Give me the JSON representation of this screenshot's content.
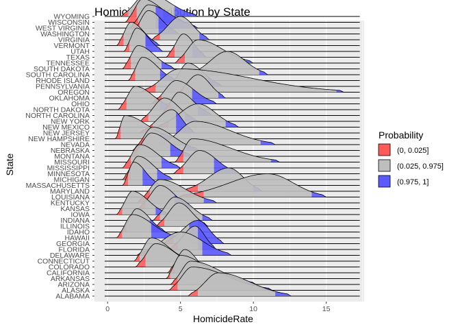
{
  "chart_data": {
    "type": "ridgeline",
    "title": "Homicide Distribution by State",
    "xlabel": "HomicideRate",
    "ylabel": "State",
    "xlim": [
      -0.9,
      17.6
    ],
    "xticks": [
      0,
      5,
      10,
      15
    ],
    "grid": true,
    "legend": {
      "title": "Probability",
      "position": "right",
      "entries": [
        {
          "label": "(0, 0.025]",
          "color": "#ff5a5a"
        },
        {
          "label": "(0.025, 0.975]",
          "color": "#bebebe"
        },
        {
          "label": "(0.975, 1]",
          "color": "#5a5aff"
        }
      ]
    },
    "series": [
      {
        "state": "ALABAMA",
        "min": 5.5,
        "mode": 7.6,
        "q025": 6.2,
        "q975": 11.5,
        "max": 12.6
      },
      {
        "state": "ALASKA",
        "min": 4.2,
        "mode": 5.8,
        "q025": 4.8,
        "q975": 10.8,
        "max": 11.3
      },
      {
        "state": "ARIZONA",
        "min": 4.3,
        "mode": 5.7,
        "q025": 4.8,
        "q975": 9.5,
        "max": 10.2
      },
      {
        "state": "ARKANSAS",
        "min": 4.0,
        "mode": 5.0,
        "q025": 4.3,
        "q975": 7.2,
        "max": 8.5
      },
      {
        "state": "CALIFORNIA",
        "min": 4.1,
        "mode": 5.3,
        "q025": 4.6,
        "q975": 6.4,
        "max": 7.1
      },
      {
        "state": "COLORADO",
        "min": 1.9,
        "mode": 3.3,
        "q025": 2.6,
        "q975": 5.5,
        "max": 6.4
      },
      {
        "state": "CONNECTICUT",
        "min": 1.8,
        "mode": 3.0,
        "q025": 2.2,
        "q975": 4.8,
        "max": 5.7
      },
      {
        "state": "DELAWARE",
        "min": 2.0,
        "mode": 5.0,
        "q025": 2.6,
        "q975": 6.5,
        "max": 8.5
      },
      {
        "state": "FLORIDA",
        "min": 4.2,
        "mode": 6.0,
        "q025": 4.8,
        "q975": 6.2,
        "max": 7.5
      },
      {
        "state": "GEORGIA",
        "min": 3.8,
        "mode": 6.2,
        "q025": 4.5,
        "q975": 5.6,
        "max": 8.0
      },
      {
        "state": "HAWAII",
        "min": 0.6,
        "mode": 1.7,
        "q025": 1.0,
        "q975": 3.0,
        "max": 4.8
      },
      {
        "state": "IDAHO",
        "min": 0.9,
        "mode": 2.0,
        "q025": 1.3,
        "q975": 2.9,
        "max": 4.0
      },
      {
        "state": "ILLINOIS",
        "min": 3.3,
        "mode": 4.9,
        "q025": 3.9,
        "q975": 6.2,
        "max": 6.9
      },
      {
        "state": "INDIANA",
        "min": 3.1,
        "mode": 4.6,
        "q025": 3.6,
        "q975": 6.5,
        "max": 7.2
      },
      {
        "state": "IOWA",
        "min": 0.6,
        "mode": 1.7,
        "q025": 1.0,
        "q975": 3.3,
        "max": 4.2
      },
      {
        "state": "KANSAS",
        "min": 2.1,
        "mode": 3.6,
        "q025": 2.6,
        "q975": 4.6,
        "max": 5.9
      },
      {
        "state": "KENTUCKY",
        "min": 2.0,
        "mode": 3.6,
        "q025": 2.9,
        "q975": 6.6,
        "max": 7.5
      },
      {
        "state": "LOUISIANA",
        "min": 4.9,
        "mode": 11.0,
        "q025": 6.6,
        "q975": 14.0,
        "max": 15.0
      },
      {
        "state": "MARYLAND",
        "min": 5.2,
        "mode": 8.3,
        "q025": 6.2,
        "q975": 10.0,
        "max": 10.6
      },
      {
        "state": "MASSACHUSETTS",
        "min": 1.0,
        "mode": 1.8,
        "q025": 1.4,
        "q975": 2.4,
        "max": 3.6
      },
      {
        "state": "MICHIGAN",
        "min": 1.0,
        "mode": 2.1,
        "q025": 1.6,
        "q975": 3.4,
        "max": 4.5
      },
      {
        "state": "MINNESOTA",
        "min": 4.5,
        "mode": 6.3,
        "q025": 5.2,
        "q975": 7.3,
        "max": 9.0
      },
      {
        "state": "MISSISSIPPI",
        "min": 1.0,
        "mode": 2.2,
        "q025": 1.6,
        "q975": 3.7,
        "max": 5.0
      },
      {
        "state": "MISSOURI",
        "min": 4.6,
        "mode": 5.8,
        "q025": 5.2,
        "q975": 11.2,
        "max": 11.8
      },
      {
        "state": "MONTANA",
        "min": 1.6,
        "mode": 3.0,
        "q025": 2.1,
        "q975": 4.3,
        "max": 5.8
      },
      {
        "state": "NEBRASKA",
        "min": 1.7,
        "mode": 3.1,
        "q025": 2.5,
        "q975": 5.4,
        "max": 6.3
      },
      {
        "state": "NEVADA",
        "min": 3.6,
        "mode": 6.0,
        "q025": 4.3,
        "q975": 10.5,
        "max": 11.5
      },
      {
        "state": "NEW HAMPSHIRE",
        "min": 0.5,
        "mode": 1.2,
        "q025": 0.9,
        "q975": 3.6,
        "max": 4.6
      },
      {
        "state": "NEW JERSEY",
        "min": 2.2,
        "mode": 4.4,
        "q025": 3.1,
        "q975": 4.7,
        "max": 6.0
      },
      {
        "state": "NEW MEXICO",
        "min": 3.4,
        "mode": 6.2,
        "q025": 4.2,
        "q975": 8.1,
        "max": 9.0
      },
      {
        "state": "NEW YORK",
        "min": 2.2,
        "mode": 3.9,
        "q025": 2.8,
        "q975": 5.3,
        "max": 6.2
      },
      {
        "state": "NORTH CAROLINA",
        "min": 3.6,
        "mode": 4.9,
        "q025": 4.3,
        "q975": 6.2,
        "max": 7.2
      },
      {
        "state": "NORTH DAKOTA",
        "min": 0.7,
        "mode": 1.9,
        "q025": 1.3,
        "q975": 3.6,
        "max": 4.7
      },
      {
        "state": "OHIO",
        "min": 3.0,
        "mode": 4.7,
        "q025": 3.7,
        "q975": 5.8,
        "max": 7.5
      },
      {
        "state": "OKLAHOMA",
        "min": 4.4,
        "mode": 6.2,
        "q025": 5.2,
        "q975": 7.6,
        "max": 8.1
      },
      {
        "state": "OREGON",
        "min": 2.3,
        "mode": 4.9,
        "q025": 3.3,
        "q975": 15.7,
        "max": 16.2
      },
      {
        "state": "PENNSYLVANIA",
        "min": 4.2,
        "mode": 5.5,
        "q025": 4.6,
        "q975": 6.9,
        "max": 7.9
      },
      {
        "state": "RHODE ISLAND",
        "min": 1.4,
        "mode": 2.4,
        "q025": 1.9,
        "q975": 3.6,
        "max": 4.7
      },
      {
        "state": "SOUTH CAROLINA",
        "min": 5.6,
        "mode": 8.2,
        "q025": 6.3,
        "q975": 10.4,
        "max": 11.0
      },
      {
        "state": "SOUTH DAKOTA",
        "min": 1.0,
        "mode": 2.1,
        "q025": 1.6,
        "q975": 3.7,
        "max": 4.6
      },
      {
        "state": "TENNESSEE",
        "min": 4.6,
        "mode": 6.2,
        "q025": 5.3,
        "q975": 9.5,
        "max": 10.0
      },
      {
        "state": "TEXAS",
        "min": 4.0,
        "mode": 5.2,
        "q025": 4.6,
        "q975": 5.8,
        "max": 6.8
      },
      {
        "state": "UTAH",
        "min": 1.1,
        "mode": 2.0,
        "q025": 1.5,
        "q975": 2.6,
        "max": 3.8
      },
      {
        "state": "VERMONT",
        "min": 0.6,
        "mode": 1.6,
        "q025": 1.1,
        "q975": 2.6,
        "max": 3.6
      },
      {
        "state": "VIRGINIA",
        "min": 3.0,
        "mode": 5.0,
        "q025": 3.6,
        "q975": 6.3,
        "max": 7.0
      },
      {
        "state": "WASHINGTON",
        "min": 1.6,
        "mode": 2.8,
        "q025": 2.2,
        "q975": 3.5,
        "max": 4.9
      },
      {
        "state": "WEST VIRGINIA",
        "min": 1.5,
        "mode": 2.8,
        "q025": 2.1,
        "q975": 3.3,
        "max": 6.2
      },
      {
        "state": "WISCONSIN",
        "min": 1.2,
        "mode": 2.4,
        "q025": 2.0,
        "q975": 3.8,
        "max": 5.3
      },
      {
        "state": "WYOMING",
        "min": 0.9,
        "mode": 2.7,
        "q025": 1.4,
        "q975": 4.6,
        "max": 6.2
      }
    ]
  }
}
